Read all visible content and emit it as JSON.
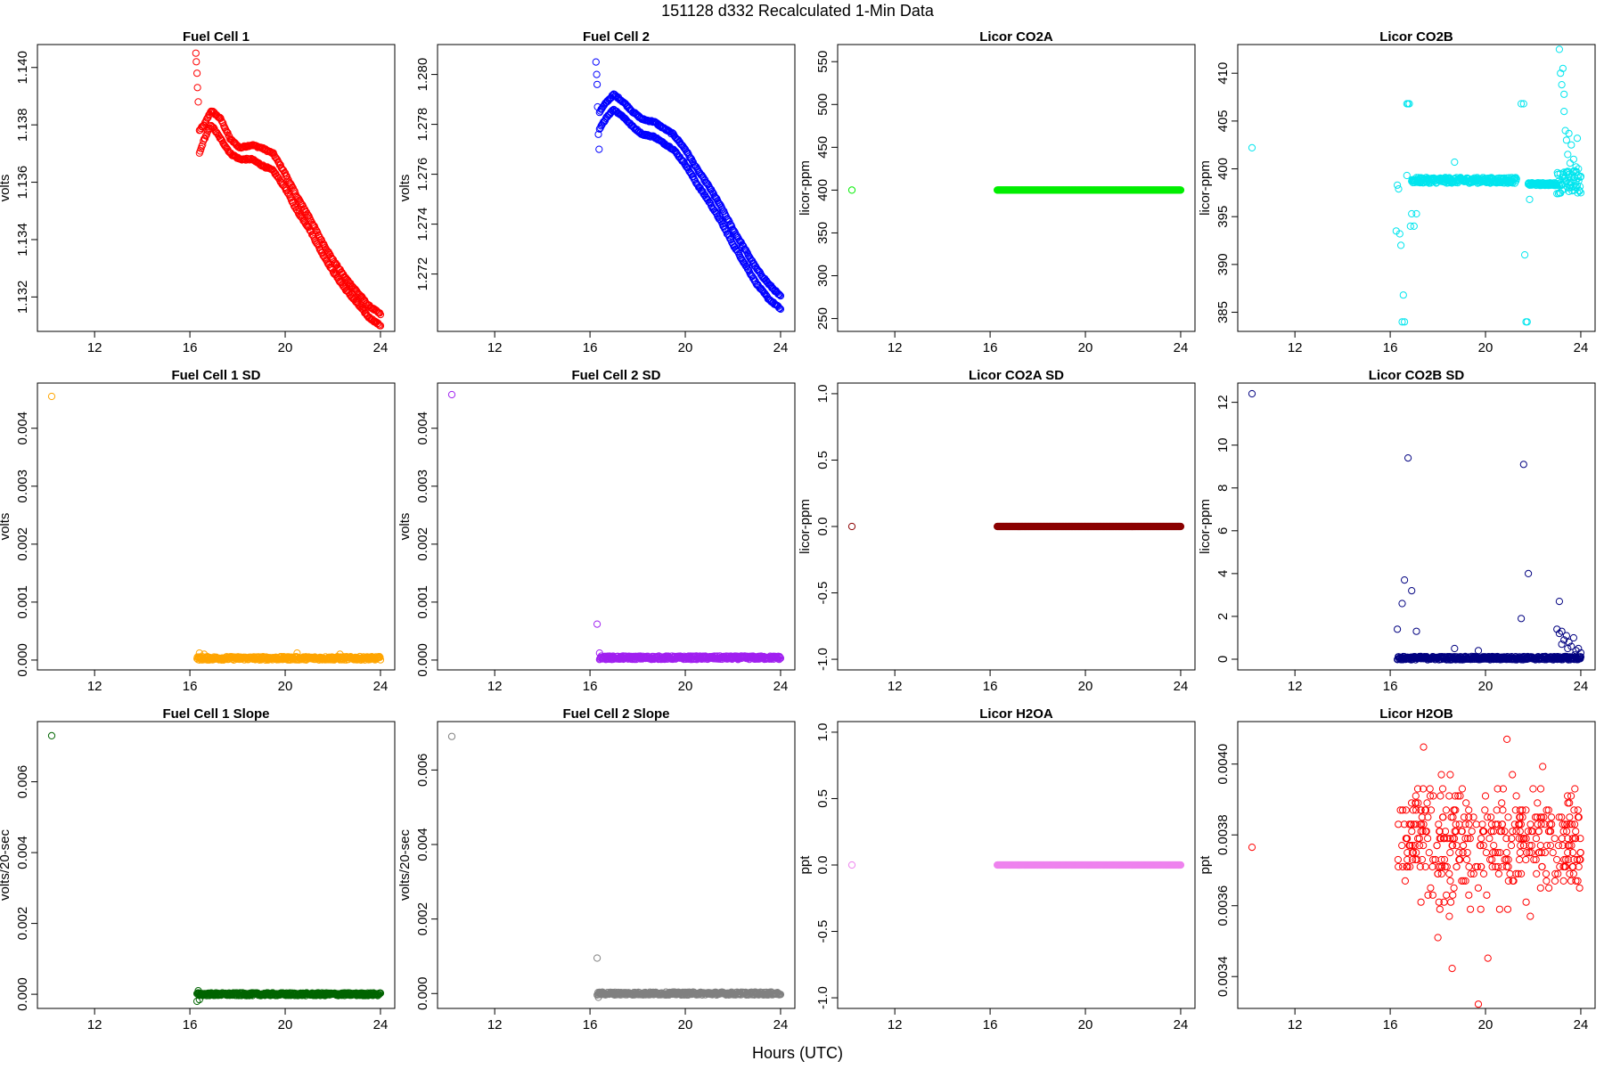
{
  "figure": {
    "title": "151128   d332   Recalculated 1-Min Data",
    "xlabel": "Hours (UTC)"
  },
  "chart_data": [
    {
      "type": "scatter",
      "title": "Fuel Cell 1",
      "ylabel": "volts",
      "color": "#ff0000",
      "xlim": [
        9.6,
        24.6
      ],
      "ylim": [
        1.1308,
        1.1408
      ],
      "xticks": [
        12,
        16,
        20,
        24
      ],
      "yticks": [
        1.132,
        1.134,
        1.136,
        1.138,
        1.14
      ],
      "ytick_labels": [
        "1.132",
        "1.134",
        "1.136",
        "1.138",
        "1.140"
      ],
      "pattern": "double",
      "points": [
        [
          16.25,
          1.1405
        ],
        [
          16.27,
          1.1402
        ],
        [
          16.3,
          1.1398
        ],
        [
          16.32,
          1.1393
        ],
        [
          16.35,
          1.1388
        ]
      ],
      "series": [
        {
          "name": "upper",
          "points": [
            [
              16.4,
              1.1378
            ],
            [
              16.6,
              1.138
            ],
            [
              16.9,
              1.1385
            ],
            [
              17.3,
              1.1382
            ],
            [
              17.7,
              1.1375
            ],
            [
              18.1,
              1.1372
            ],
            [
              18.6,
              1.1373
            ],
            [
              19.0,
              1.1372
            ],
            [
              19.5,
              1.137
            ],
            [
              20.0,
              1.1363
            ],
            [
              20.5,
              1.1355
            ],
            [
              21.0,
              1.1348
            ],
            [
              21.5,
              1.134
            ],
            [
              22.0,
              1.1333
            ],
            [
              22.5,
              1.1327
            ],
            [
              23.0,
              1.1322
            ],
            [
              23.5,
              1.1317
            ],
            [
              24.0,
              1.1314
            ]
          ]
        },
        {
          "name": "lower",
          "points": [
            [
              16.4,
              1.137
            ],
            [
              16.6,
              1.1375
            ],
            [
              16.9,
              1.138
            ],
            [
              17.3,
              1.1375
            ],
            [
              17.7,
              1.137
            ],
            [
              18.1,
              1.1368
            ],
            [
              18.6,
              1.1368
            ],
            [
              19.0,
              1.1366
            ],
            [
              19.5,
              1.1364
            ],
            [
              20.0,
              1.1358
            ],
            [
              20.5,
              1.135
            ],
            [
              21.0,
              1.1344
            ],
            [
              21.5,
              1.1336
            ],
            [
              22.0,
              1.1329
            ],
            [
              22.5,
              1.1323
            ],
            [
              23.0,
              1.1318
            ],
            [
              23.5,
              1.1313
            ],
            [
              24.0,
              1.131
            ]
          ]
        }
      ]
    },
    {
      "type": "scatter",
      "title": "Fuel Cell 2",
      "ylabel": "volts",
      "color": "#0000ff",
      "xlim": [
        9.6,
        24.6
      ],
      "ylim": [
        1.2697,
        1.2812
      ],
      "xticks": [
        12,
        16,
        20,
        24
      ],
      "yticks": [
        1.272,
        1.274,
        1.276,
        1.278,
        1.28
      ],
      "ytick_labels": [
        "1.272",
        "1.274",
        "1.276",
        "1.278",
        "1.280"
      ],
      "pattern": "double",
      "points": [
        [
          16.25,
          1.2805
        ],
        [
          16.28,
          1.28
        ],
        [
          16.3,
          1.2796
        ],
        [
          16.32,
          1.2787
        ],
        [
          16.35,
          1.2776
        ],
        [
          16.38,
          1.277
        ]
      ],
      "series": [
        {
          "name": "upper",
          "points": [
            [
              16.4,
              1.2785
            ],
            [
              16.7,
              1.2789
            ],
            [
              17.0,
              1.2792
            ],
            [
              17.4,
              1.2789
            ],
            [
              17.8,
              1.2785
            ],
            [
              18.2,
              1.2782
            ],
            [
              18.7,
              1.2781
            ],
            [
              19.0,
              1.2779
            ],
            [
              19.5,
              1.2776
            ],
            [
              20.0,
              1.277
            ],
            [
              20.5,
              1.2762
            ],
            [
              21.0,
              1.2755
            ],
            [
              21.5,
              1.2747
            ],
            [
              22.0,
              1.2738
            ],
            [
              22.5,
              1.273
            ],
            [
              23.0,
              1.2722
            ],
            [
              23.5,
              1.2716
            ],
            [
              24.0,
              1.2711
            ]
          ]
        },
        {
          "name": "lower",
          "points": [
            [
              16.4,
              1.2778
            ],
            [
              16.7,
              1.2783
            ],
            [
              17.0,
              1.2786
            ],
            [
              17.4,
              1.2783
            ],
            [
              17.8,
              1.2779
            ],
            [
              18.2,
              1.2776
            ],
            [
              18.7,
              1.2775
            ],
            [
              19.0,
              1.2773
            ],
            [
              19.5,
              1.277
            ],
            [
              20.0,
              1.2764
            ],
            [
              20.5,
              1.2756
            ],
            [
              21.0,
              1.2749
            ],
            [
              21.5,
              1.2741
            ],
            [
              22.0,
              1.2732
            ],
            [
              22.5,
              1.2724
            ],
            [
              23.0,
              1.2716
            ],
            [
              23.5,
              1.271
            ],
            [
              24.0,
              1.2706
            ]
          ]
        }
      ]
    },
    {
      "type": "scatter",
      "title": "Licor CO2A",
      "ylabel": "licor-ppm",
      "color": "#00ee00",
      "xlim": [
        9.6,
        24.6
      ],
      "ylim": [
        235,
        570
      ],
      "xticks": [
        12,
        16,
        20,
        24
      ],
      "yticks": [
        250,
        300,
        350,
        400,
        450,
        500,
        550
      ],
      "ytick_labels": [
        "250",
        "300",
        "350",
        "400",
        "450",
        "500",
        "550"
      ],
      "pattern": "band",
      "band": {
        "x0": 16.3,
        "x1": 24.0,
        "y": 400,
        "jitter": 0
      },
      "points": [
        [
          10.2,
          400
        ]
      ]
    },
    {
      "type": "scatter",
      "title": "Licor CO2B",
      "ylabel": "licor-ppm",
      "color": "#00e5ee",
      "xlim": [
        9.6,
        24.6
      ],
      "ylim": [
        383,
        413
      ],
      "xticks": [
        12,
        16,
        20,
        24
      ],
      "yticks": [
        385,
        390,
        395,
        400,
        405,
        410
      ],
      "ytick_labels": [
        "385",
        "390",
        "395",
        "400",
        "405",
        "410"
      ],
      "pattern": "segments",
      "segments": [
        {
          "x0": 16.9,
          "x1": 21.3,
          "y": 398.8,
          "jitter": 0.3
        },
        {
          "x0": 21.8,
          "x1": 23.0,
          "y": 398.4,
          "jitter": 0.15
        },
        {
          "x0": 23.0,
          "x1": 24.0,
          "y": 398.6,
          "jitter": 1.2
        }
      ],
      "points": [
        [
          10.2,
          402.2
        ],
        [
          16.25,
          393.5
        ],
        [
          16.3,
          398.3
        ],
        [
          16.35,
          397.9
        ],
        [
          16.4,
          393.2
        ],
        [
          16.45,
          392.0
        ],
        [
          16.5,
          384.0
        ],
        [
          16.55,
          386.8
        ],
        [
          16.6,
          384.0
        ],
        [
          16.7,
          406.8
        ],
        [
          16.75,
          406.8
        ],
        [
          16.8,
          406.8
        ],
        [
          16.85,
          394.0
        ],
        [
          16.9,
          395.3
        ],
        [
          17.0,
          394.0
        ],
        [
          17.1,
          395.3
        ],
        [
          16.7,
          399.3
        ],
        [
          18.7,
          400.7
        ],
        [
          21.5,
          406.8
        ],
        [
          21.6,
          406.8
        ],
        [
          21.65,
          391.0
        ],
        [
          21.7,
          384.0
        ],
        [
          21.75,
          384.0
        ],
        [
          21.8,
          398.4
        ],
        [
          21.85,
          396.8
        ],
        [
          23.1,
          412.5
        ],
        [
          23.15,
          410.0
        ],
        [
          23.2,
          408.8
        ],
        [
          23.25,
          410.5
        ],
        [
          23.3,
          406.0
        ],
        [
          23.3,
          407.8
        ],
        [
          23.35,
          404.0
        ],
        [
          23.4,
          403.0
        ],
        [
          23.45,
          401.5
        ],
        [
          23.5,
          403.7
        ],
        [
          23.55,
          400.6
        ],
        [
          23.6,
          402.5
        ],
        [
          23.7,
          401.0
        ],
        [
          23.75,
          399.8
        ],
        [
          23.8,
          400.2
        ],
        [
          23.85,
          403.2
        ],
        [
          23.9,
          400.0
        ],
        [
          24.0,
          399.2
        ]
      ]
    },
    {
      "type": "scatter",
      "title": "Fuel Cell 1 SD",
      "ylabel": "volts",
      "color": "#ffa500",
      "xlim": [
        9.6,
        24.6
      ],
      "ylim": [
        -0.00017,
        0.00478
      ],
      "xticks": [
        12,
        16,
        20,
        24
      ],
      "yticks": [
        0,
        0.001,
        0.002,
        0.003,
        0.004
      ],
      "ytick_labels": [
        "0.000",
        "0.001",
        "0.002",
        "0.003",
        "0.004"
      ],
      "pattern": "band",
      "band": {
        "x0": 16.3,
        "x1": 24.0,
        "y": 3e-05,
        "jitter": 3e-05
      },
      "points": [
        [
          10.2,
          0.00455
        ],
        [
          16.4,
          0.00012
        ],
        [
          16.6,
          0.0001
        ],
        [
          20.5,
          0.00012
        ],
        [
          22.3,
          0.0001
        ]
      ]
    },
    {
      "type": "scatter",
      "title": "Fuel Cell 2 SD",
      "ylabel": "volts",
      "color": "#a020f0",
      "xlim": [
        9.6,
        24.6
      ],
      "ylim": [
        -0.00017,
        0.00478
      ],
      "xticks": [
        12,
        16,
        20,
        24
      ],
      "yticks": [
        0,
        0.001,
        0.002,
        0.003,
        0.004
      ],
      "ytick_labels": [
        "0.000",
        "0.001",
        "0.002",
        "0.003",
        "0.004"
      ],
      "pattern": "band",
      "band": {
        "x0": 16.4,
        "x1": 24.0,
        "y": 4e-05,
        "jitter": 3e-05
      },
      "points": [
        [
          10.2,
          0.00458
        ],
        [
          16.3,
          0.00062
        ],
        [
          16.4,
          0.00012
        ]
      ]
    },
    {
      "type": "scatter",
      "title": "Licor CO2A SD",
      "ylabel": "licor-ppm",
      "color": "#8b0000",
      "xlim": [
        9.6,
        24.6
      ],
      "ylim": [
        -1.08,
        1.08
      ],
      "xticks": [
        12,
        16,
        20,
        24
      ],
      "yticks": [
        -1,
        -0.5,
        0,
        0.5,
        1
      ],
      "ytick_labels": [
        "-1.0",
        "-0.5",
        "0.0",
        "0.5",
        "1.0"
      ],
      "pattern": "band",
      "band": {
        "x0": 16.3,
        "x1": 24.0,
        "y": 0,
        "jitter": 0
      },
      "points": [
        [
          10.2,
          0
        ]
      ]
    },
    {
      "type": "scatter",
      "title": "Licor CO2B SD",
      "ylabel": "licor-ppm",
      "color": "#000080",
      "xlim": [
        9.6,
        24.6
      ],
      "ylim": [
        -0.5,
        12.9
      ],
      "xticks": [
        12,
        16,
        20,
        24
      ],
      "yticks": [
        0,
        2,
        4,
        6,
        8,
        10,
        12
      ],
      "ytick_labels": [
        "0",
        "2",
        "4",
        "6",
        "8",
        "10",
        "12"
      ],
      "pattern": "band",
      "band": {
        "x0": 16.3,
        "x1": 24.0,
        "y": 0.05,
        "jitter": 0.08
      },
      "points": [
        [
          10.2,
          12.4
        ],
        [
          16.3,
          1.4
        ],
        [
          16.5,
          2.6
        ],
        [
          16.6,
          3.7
        ],
        [
          16.75,
          9.4
        ],
        [
          16.9,
          3.2
        ],
        [
          17.1,
          1.3
        ],
        [
          18.7,
          0.5
        ],
        [
          19.7,
          0.4
        ],
        [
          21.5,
          1.9
        ],
        [
          21.6,
          9.1
        ],
        [
          21.8,
          4.0
        ],
        [
          23.1,
          2.7
        ],
        [
          23.0,
          1.4
        ],
        [
          23.1,
          1.2
        ],
        [
          23.2,
          1.3
        ],
        [
          23.3,
          0.9
        ],
        [
          23.4,
          1.1
        ],
        [
          23.5,
          0.8
        ],
        [
          23.6,
          0.6
        ],
        [
          23.7,
          1.0
        ],
        [
          23.8,
          0.4
        ],
        [
          23.9,
          0.5
        ],
        [
          24.0,
          0.3
        ],
        [
          23.2,
          0.7
        ],
        [
          23.45,
          0.5
        ],
        [
          23.75,
          0.2
        ]
      ]
    },
    {
      "type": "scatter",
      "title": "Fuel Cell 1 Slope",
      "ylabel": "volts/20-sec",
      "color": "#006400",
      "xlim": [
        9.6,
        24.6
      ],
      "ylim": [
        -0.0004,
        0.0077
      ],
      "xticks": [
        12,
        16,
        20,
        24
      ],
      "yticks": [
        0,
        0.002,
        0.004,
        0.006
      ],
      "ytick_labels": [
        "0.000",
        "0.002",
        "0.004",
        "0.006"
      ],
      "pattern": "band",
      "band": {
        "x0": 16.3,
        "x1": 24.0,
        "y": 0,
        "jitter": 4e-05
      },
      "points": [
        [
          10.2,
          0.0073
        ],
        [
          16.3,
          -0.0002
        ],
        [
          16.35,
          0.0001
        ],
        [
          16.4,
          -0.00015
        ]
      ]
    },
    {
      "type": "scatter",
      "title": "Fuel Cell 2 Slope",
      "ylabel": "volts/20-sec",
      "color": "#808080",
      "xlim": [
        9.6,
        24.6
      ],
      "ylim": [
        -0.0004,
        0.0073
      ],
      "xticks": [
        12,
        16,
        20,
        24
      ],
      "yticks": [
        0,
        0.002,
        0.004,
        0.006
      ],
      "ytick_labels": [
        "0.000",
        "0.002",
        "0.004",
        "0.006"
      ],
      "pattern": "band",
      "band": {
        "x0": 16.3,
        "x1": 24.0,
        "y": 0,
        "jitter": 4e-05
      },
      "points": [
        [
          10.2,
          0.0069
        ],
        [
          16.3,
          0.00095
        ],
        [
          16.35,
          -0.0001
        ]
      ]
    },
    {
      "type": "scatter",
      "title": "Licor H2OA",
      "ylabel": "ppt",
      "color": "#ee82ee",
      "xlim": [
        9.6,
        24.6
      ],
      "ylim": [
        -1.08,
        1.08
      ],
      "xticks": [
        12,
        16,
        20,
        24
      ],
      "yticks": [
        -1,
        -0.5,
        0,
        0.5,
        1
      ],
      "ytick_labels": [
        "-1.0",
        "-0.5",
        "0.0",
        "0.5",
        "1.0"
      ],
      "pattern": "band",
      "band": {
        "x0": 16.3,
        "x1": 24.0,
        "y": 0,
        "jitter": 0
      },
      "points": [
        [
          10.2,
          0
        ]
      ]
    },
    {
      "type": "scatter",
      "title": "Licor H2OB",
      "ylabel": "ppt",
      "color": "#ff0000",
      "xlim": [
        9.6,
        24.6
      ],
      "ylim": [
        0.00331,
        0.00412
      ],
      "xticks": [
        12,
        16,
        20,
        24
      ],
      "yticks": [
        0.0034,
        0.0036,
        0.0038,
        0.004
      ],
      "ytick_labels": [
        "0.0034",
        "0.0036",
        "0.0038",
        "0.0040"
      ],
      "pattern": "cloud",
      "cloud": {
        "x0": 16.3,
        "x1": 24.0,
        "n": 380,
        "levels": [
          0.00351,
          0.00353,
          0.00355,
          0.00357,
          0.00359,
          0.00361,
          0.00363,
          0.00365,
          0.00367,
          0.00369,
          0.00371,
          0.00373,
          0.00375,
          0.00377,
          0.00379,
          0.00381,
          0.00383,
          0.00385,
          0.00387,
          0.00389,
          0.00391,
          0.00393,
          0.00395,
          0.00397
        ]
      },
      "points": [
        [
          10.2,
          0.003765
        ],
        [
          19.7,
          0.003322
        ],
        [
          20.9,
          0.00407
        ],
        [
          18.6,
          0.003423
        ],
        [
          20.1,
          0.003452
        ],
        [
          17.4,
          0.004048
        ],
        [
          18.0,
          0.00351
        ],
        [
          22.4,
          0.003993
        ]
      ]
    }
  ]
}
